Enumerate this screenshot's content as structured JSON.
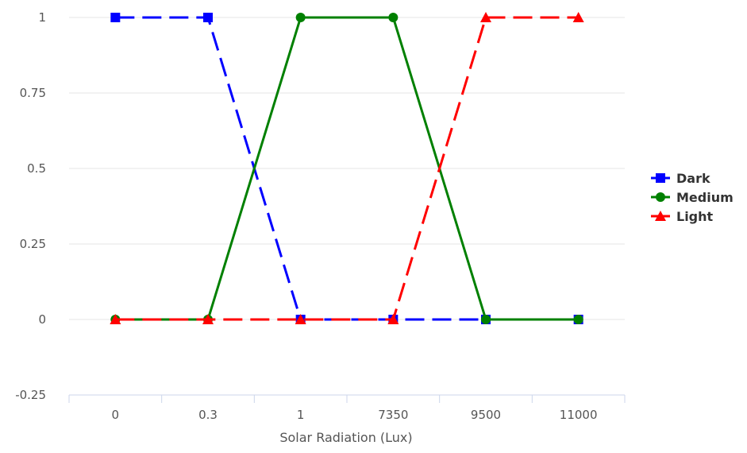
{
  "chart_data": {
    "type": "line",
    "title": "",
    "xlabel": "Solar Radiation (Lux)",
    "ylabel": "",
    "categories": [
      "0",
      "0.3",
      "1",
      "7350",
      "9500",
      "11000"
    ],
    "ylim": [
      -0.25,
      1
    ],
    "yticks": [
      "-0.25",
      "0",
      "0.25",
      "0.5",
      "0.75",
      "1"
    ],
    "ytick_values": [
      -0.25,
      0,
      0.25,
      0.5,
      0.75,
      1
    ],
    "grid": true,
    "legend_position": "right",
    "series": [
      {
        "name": "Dark",
        "values": [
          1,
          1,
          0,
          0,
          0,
          0
        ],
        "color": "#0000ff",
        "marker": "square",
        "line_style": "dashed"
      },
      {
        "name": "Medium",
        "values": [
          0,
          0,
          1,
          1,
          0,
          0
        ],
        "color": "#008000",
        "marker": "circle",
        "line_style": "solid"
      },
      {
        "name": "Light",
        "values": [
          0,
          0,
          0,
          0,
          1,
          1
        ],
        "color": "#ff0000",
        "marker": "triangle",
        "line_style": "dashed"
      }
    ]
  }
}
